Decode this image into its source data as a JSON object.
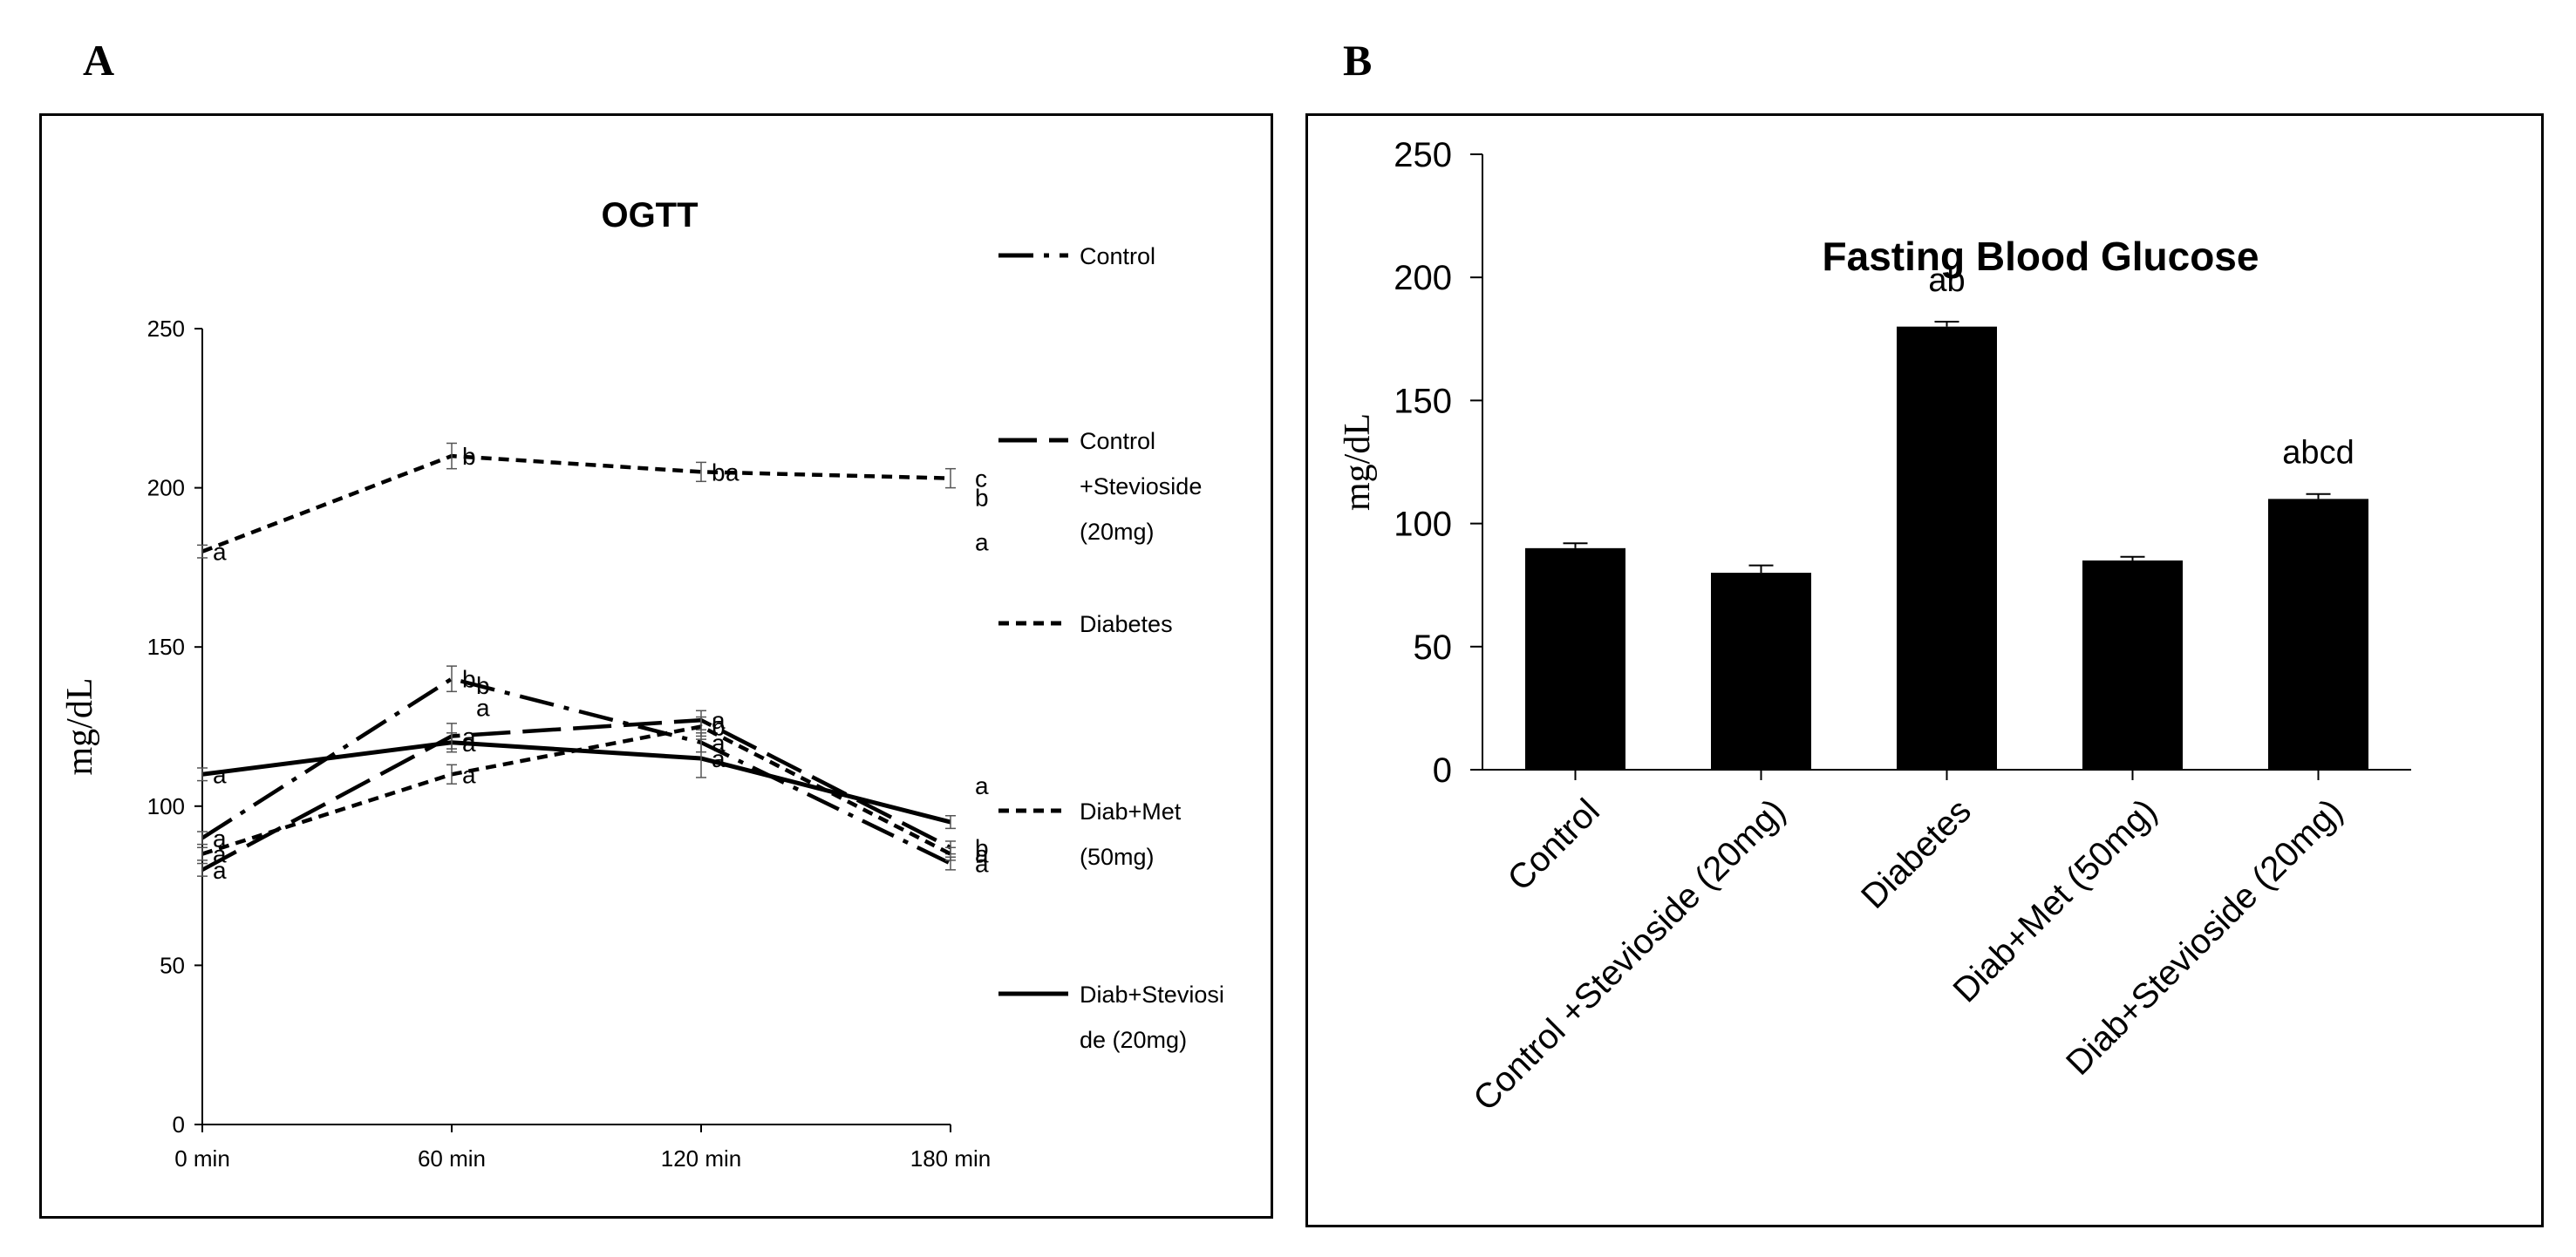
{
  "panels": {
    "a": "A",
    "b": "B"
  },
  "chart_data": [
    {
      "type": "line",
      "title": "OGTT",
      "xlabel": "",
      "ylabel": "mg/dL",
      "x": [
        "0 min",
        "60 min",
        "120 min",
        "180 min"
      ],
      "ylim": [
        0,
        250
      ],
      "yticks": [
        0,
        50,
        100,
        150,
        200,
        250
      ],
      "series": [
        {
          "name": "Control",
          "dash": "40,12,6,12",
          "values": [
            90,
            140,
            120,
            82
          ],
          "sig": [
            "a",
            "b",
            "a",
            "a"
          ],
          "err": [
            2,
            4,
            3,
            2
          ]
        },
        {
          "name": "Control +Stevioside (20mg)",
          "dash": "44,14",
          "values": [
            80,
            122,
            127,
            87
          ],
          "sig": [
            "a",
            "a",
            "a",
            "b"
          ],
          "err": [
            2,
            4,
            3,
            2
          ]
        },
        {
          "name": "Diabetes",
          "dash": "12,8",
          "values": [
            180,
            210,
            205,
            203
          ],
          "sig": [
            "a",
            "b",
            "b",
            "c"
          ],
          "err": [
            2,
            4,
            3,
            3
          ]
        },
        {
          "name": "Diab+Met (50mg)",
          "dash": "12,8",
          "values": [
            85,
            110,
            125,
            85
          ],
          "sig": [
            "a",
            "a",
            "b",
            "a"
          ],
          "err": [
            2,
            3,
            3,
            2
          ]
        },
        {
          "name": "Diab+Stevioside (20mg)",
          "dash": "",
          "values": [
            110,
            120,
            115,
            95
          ],
          "sig": [
            "a",
            "a",
            "a",
            "a"
          ],
          "err": [
            2,
            3,
            6,
            2
          ]
        }
      ],
      "extra_labels": [
        {
          "text": "b",
          "x_index": 1,
          "y": 138
        },
        {
          "text": "a",
          "x_index": 1,
          "y": 131
        },
        {
          "text": "a",
          "x_index": 2,
          "y": 205
        },
        {
          "text": "b",
          "x_index": 3,
          "y": 197
        },
        {
          "text": "a",
          "x_index": 3,
          "y": 183
        }
      ],
      "legend": [
        {
          "lines": [
            "Control"
          ],
          "dash": "40,12,6,12"
        },
        {
          "lines": [
            "Control",
            "+Stevioside",
            "(20mg)"
          ],
          "dash": "44,14"
        },
        {
          "lines": [
            "Diabetes"
          ],
          "dash": "12,8"
        },
        {
          "lines": [
            "Diab+Met",
            "(50mg)"
          ],
          "dash": "12,8"
        },
        {
          "lines": [
            "Diab+Steviosi",
            "de (20mg)"
          ],
          "dash": ""
        }
      ]
    },
    {
      "type": "bar",
      "title": "Fasting Blood Glucose",
      "xlabel": "",
      "ylabel": "mg/dL",
      "categories": [
        "Control",
        "Control +Stevioside (20mg)",
        "Diabetes",
        "Diab+Met (50mg)",
        "Diab+Stevioside (20mg)"
      ],
      "values": [
        90,
        80,
        180,
        85,
        110
      ],
      "errors": [
        2,
        3,
        2,
        1.5,
        2
      ],
      "sig": [
        "",
        "",
        "ab",
        "",
        "abcd"
      ],
      "ylim": [
        0,
        250
      ],
      "yticks": [
        0,
        50,
        100,
        150,
        200,
        250
      ],
      "bar_color": "#000000"
    }
  ]
}
